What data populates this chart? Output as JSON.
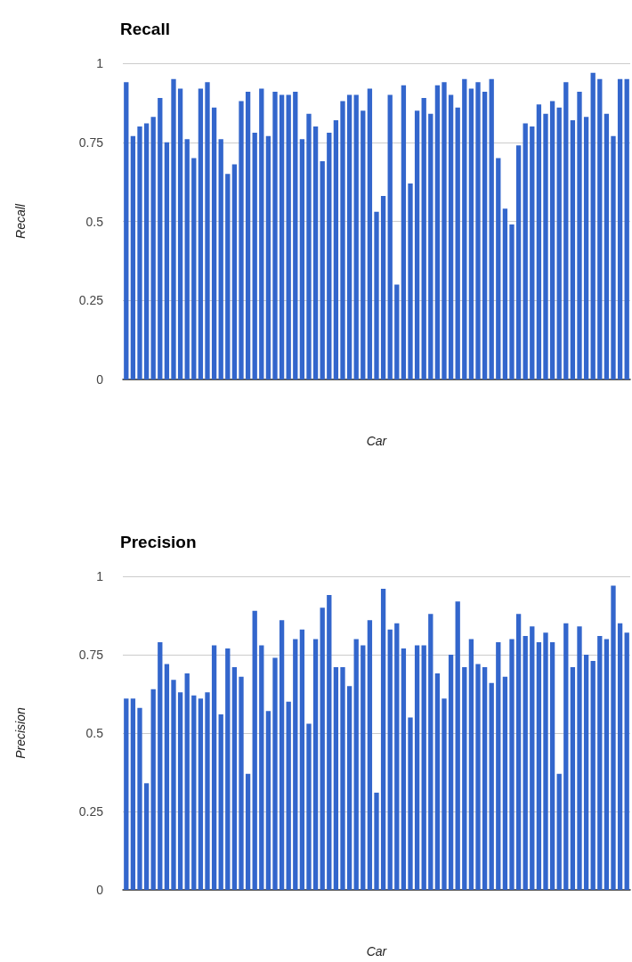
{
  "chart_data": [
    {
      "type": "bar",
      "title": "Recall",
      "xlabel": "Car",
      "ylabel": "Recall",
      "categories": [
        null,
        null,
        null,
        null,
        null,
        null,
        null,
        null,
        null,
        null,
        null,
        null,
        null,
        null,
        null,
        null,
        null,
        null,
        null,
        null,
        null,
        null,
        null,
        null,
        null,
        null,
        null,
        null,
        null,
        null,
        null,
        null,
        null,
        null,
        null,
        null,
        null,
        null,
        null,
        null,
        null,
        null,
        null,
        null,
        null,
        null,
        null,
        null,
        null,
        null,
        null,
        null,
        null,
        null,
        null,
        null,
        null,
        null,
        null,
        null,
        null,
        null,
        null,
        null,
        null,
        null,
        null,
        null,
        null,
        null,
        null,
        null,
        null,
        null,
        null
      ],
      "values": [
        0.94,
        0.77,
        0.8,
        0.81,
        0.83,
        0.89,
        0.75,
        0.95,
        0.92,
        0.76,
        0.7,
        0.92,
        0.94,
        0.86,
        0.76,
        0.65,
        0.68,
        0.88,
        0.91,
        0.78,
        0.92,
        0.77,
        0.91,
        0.9,
        0.9,
        0.91,
        0.76,
        0.84,
        0.8,
        0.69,
        0.78,
        0.82,
        0.88,
        0.9,
        0.9,
        0.85,
        0.92,
        0.53,
        0.58,
        0.9,
        0.3,
        0.93,
        0.62,
        0.85,
        0.89,
        0.84,
        0.93,
        0.94,
        0.9,
        0.86,
        0.95,
        0.92,
        0.94,
        0.91,
        0.95,
        0.7,
        0.54,
        0.49,
        0.74,
        0.81,
        0.8,
        0.87,
        0.84,
        0.88,
        0.86,
        0.94,
        0.82,
        0.91,
        0.83,
        0.97,
        0.95,
        0.84,
        0.77,
        0.95,
        0.95
      ],
      "color": "#3366cc",
      "ylim": [
        0,
        1
      ],
      "yticks": [
        0,
        0.25,
        0.5,
        0.75,
        1
      ],
      "grid": "y",
      "tick_labels": "y"
    },
    {
      "type": "bar",
      "title": "Precision",
      "xlabel": "Car",
      "ylabel": "Precision",
      "categories": [
        null,
        null,
        null,
        null,
        null,
        null,
        null,
        null,
        null,
        null,
        null,
        null,
        null,
        null,
        null,
        null,
        null,
        null,
        null,
        null,
        null,
        null,
        null,
        null,
        null,
        null,
        null,
        null,
        null,
        null,
        null,
        null,
        null,
        null,
        null,
        null,
        null,
        null,
        null,
        null,
        null,
        null,
        null,
        null,
        null,
        null,
        null,
        null,
        null,
        null,
        null,
        null,
        null,
        null,
        null,
        null,
        null,
        null,
        null,
        null,
        null,
        null,
        null,
        null,
        null,
        null,
        null,
        null,
        null,
        null,
        null,
        null,
        null,
        null,
        null
      ],
      "values": [
        0.61,
        0.61,
        0.58,
        0.34,
        0.64,
        0.79,
        0.72,
        0.67,
        0.63,
        0.69,
        0.62,
        0.61,
        0.63,
        0.78,
        0.56,
        0.77,
        0.71,
        0.68,
        0.37,
        0.89,
        0.78,
        0.57,
        0.74,
        0.86,
        0.6,
        0.8,
        0.83,
        0.53,
        0.8,
        0.9,
        0.94,
        0.71,
        0.71,
        0.65,
        0.8,
        0.78,
        0.86,
        0.31,
        0.96,
        0.83,
        0.85,
        0.77,
        0.55,
        0.78,
        0.78,
        0.88,
        0.69,
        0.61,
        0.75,
        0.92,
        0.71,
        0.8,
        0.72,
        0.71,
        0.66,
        0.79,
        0.68,
        0.8,
        0.88,
        0.81,
        0.84,
        0.79,
        0.82,
        0.79,
        0.37,
        0.85,
        0.71,
        0.84,
        0.75,
        0.73,
        0.81,
        0.8,
        0.97,
        0.85,
        0.82
      ],
      "color": "#3366cc",
      "ylim": [
        0,
        1
      ],
      "yticks": [
        0,
        0.25,
        0.5,
        0.75,
        1
      ],
      "grid": "y",
      "tick_labels": "y"
    }
  ]
}
